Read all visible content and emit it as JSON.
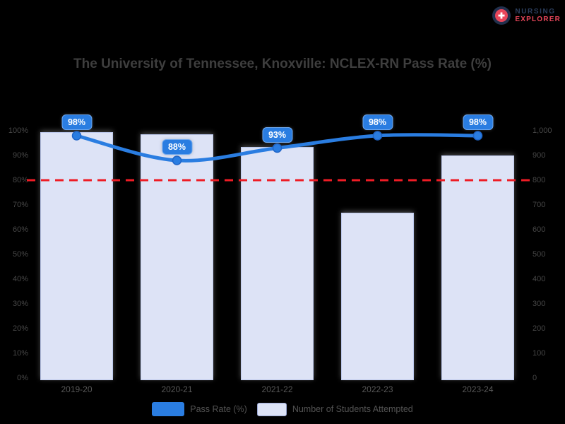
{
  "logo": {
    "line1": "NURSING",
    "line2": "EXPLORER",
    "colors": {
      "line1": "#2c3e5d",
      "line2": "#e8465a",
      "icon_ring": "#22304d",
      "icon_glyph": "#e8465a"
    }
  },
  "chart_data": {
    "type": "bar+line combo",
    "title": "The University of Tennessee, Knoxville: NCLEX-RN Pass Rate (%)",
    "categories": [
      "2019-20",
      "2020-21",
      "2021-22",
      "2022-23",
      "2023-24"
    ],
    "series": [
      {
        "name": "Pass Rate (%)",
        "type": "line",
        "axis": "left",
        "color": "#2a7de1",
        "values": [
          98,
          88,
          93,
          98,
          98
        ],
        "point_labels": [
          "98%",
          "88%",
          "93%",
          "98%",
          "98%"
        ]
      },
      {
        "name": "Number of Students Attempted",
        "type": "bar",
        "axis": "right",
        "color": "#dde3f6",
        "border_color": "#bcc8ec",
        "values": [
          995,
          985,
          935,
          670,
          900
        ]
      }
    ],
    "left_axis": {
      "min": 0,
      "max": 100,
      "step": 10,
      "labels": [
        "100%",
        "90%",
        "80%",
        "70%",
        "60%",
        "50%",
        "40%",
        "30%",
        "20%",
        "10%",
        "0%"
      ]
    },
    "right_axis": {
      "min": 0,
      "max": 1000,
      "step": 100,
      "labels": [
        "1,000",
        "900",
        "800",
        "700",
        "600",
        "500",
        "400",
        "300",
        "200",
        "100",
        "0"
      ]
    },
    "threshold": {
      "axis": "left",
      "value": 80,
      "color": "#ee1c25",
      "style": "dashed"
    },
    "legend_position": "bottom",
    "grid": false,
    "background": "#000000"
  }
}
